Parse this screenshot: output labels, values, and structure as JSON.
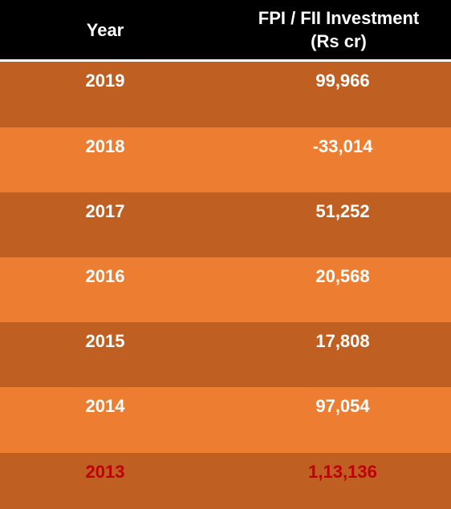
{
  "table": {
    "headers": {
      "year": "Year",
      "investment_line1": "FPI / FII Investment",
      "investment_line2": "(Rs cr)"
    },
    "rows": [
      {
        "year": "2019",
        "value": "99,966"
      },
      {
        "year": "2018",
        "value": "-33,014"
      },
      {
        "year": "2017",
        "value": "51,252"
      },
      {
        "year": "2016",
        "value": "20,568"
      },
      {
        "year": "2015",
        "value": "17,808"
      },
      {
        "year": "2014",
        "value": "97,054"
      },
      {
        "year": "2013",
        "value": "1,13,136"
      }
    ]
  },
  "colors": {
    "header_bg": "#000000",
    "row_dark": "#bf5f22",
    "row_light": "#ed7d31",
    "text": "#ffffff",
    "highlight_text": "#c00000"
  }
}
